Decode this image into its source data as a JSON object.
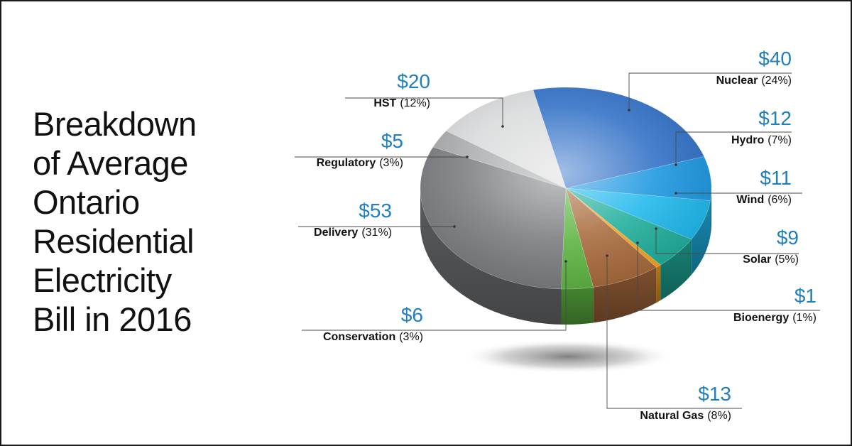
{
  "title_lines": [
    "Breakdown",
    "of Average",
    "Ontario",
    "Residential",
    "Electricity",
    "Bill in 2016"
  ],
  "chart_data": {
    "type": "pie",
    "title": "Breakdown of Average Ontario Residential Electricity Bill in 2016",
    "slices": [
      {
        "name": "Nuclear",
        "value": 40,
        "value_label": "$40",
        "percent_label": "(24%)",
        "color": "#2f6fc6"
      },
      {
        "name": "Hydro",
        "value": 12,
        "value_label": "$12",
        "percent_label": "(7%)",
        "color": "#1a96df"
      },
      {
        "name": "Wind",
        "value": 11,
        "value_label": "$11",
        "percent_label": "(6%)",
        "color": "#1eb8ec"
      },
      {
        "name": "Solar",
        "value": 9,
        "value_label": "$9",
        "percent_label": "(5%)",
        "color": "#1fae9c"
      },
      {
        "name": "Bioenergy",
        "value": 1,
        "value_label": "$1",
        "percent_label": "(1%)",
        "color": "#f7a21b"
      },
      {
        "name": "Natural Gas",
        "value": 13,
        "value_label": "$13",
        "percent_label": "(8%)",
        "color": "#a86a3c"
      },
      {
        "name": "Conservation",
        "value": 6,
        "value_label": "$6",
        "percent_label": "(3%)",
        "color": "#5eb543"
      },
      {
        "name": "Delivery",
        "value": 53,
        "value_label": "$53",
        "percent_label": "(31%)",
        "color": "#7a7c80"
      },
      {
        "name": "Regulatory",
        "value": 5,
        "value_label": "$5",
        "percent_label": "(3%)",
        "color": "#a9abad"
      },
      {
        "name": "HST",
        "value": 20,
        "value_label": "$20",
        "percent_label": "(12%)",
        "color": "#d9dadb"
      }
    ]
  }
}
